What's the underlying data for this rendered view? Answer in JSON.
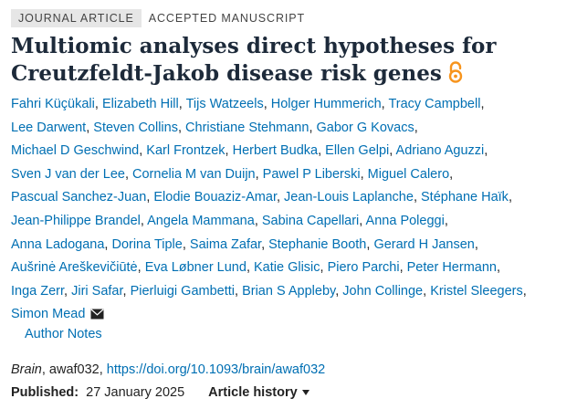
{
  "labels": {
    "type": "JOURNAL ARTICLE",
    "status": "ACCEPTED MANUSCRIPT"
  },
  "article": {
    "title_line1": "Multiomic analyses direct hypotheses for",
    "title_line2": "Creutzfeldt-Jakob disease risk genes",
    "open_access_icon": "open-lock-icon"
  },
  "authors": [
    "Fahri Küçükali",
    "Elizabeth Hill",
    "Tijs Watzeels",
    "Holger Hummerich",
    "Tracy Campbell",
    "Lee Darwent",
    "Steven Collins",
    "Christiane Stehmann",
    "Gabor G Kovacs",
    "Michael D Geschwind",
    "Karl Frontzek",
    "Herbert Budka",
    "Ellen Gelpi",
    "Adriano Aguzzi",
    "Sven J van der Lee",
    "Cornelia M van Duijn",
    "Pawel P Liberski",
    "Miguel Calero",
    "Pascual Sanchez-Juan",
    "Elodie Bouaziz-Amar",
    "Jean-Louis Laplanche",
    "Stéphane Haïk",
    "Jean-Philippe Brandel",
    "Angela Mammana",
    "Sabina Capellari",
    "Anna Poleggi",
    "Anna Ladogana",
    "Dorina Tiple",
    "Saima Zafar",
    "Stephanie Booth",
    "Gerard H Jansen",
    "Aušrinė Areškevičiūtė",
    "Eva Løbner Lund",
    "Katie Glisic",
    "Piero Parchi",
    "Peter Hermann",
    "Inga Zerr",
    "Jiri Safar",
    "Pierluigi Gambetti",
    "Brian S Appleby",
    "John Collinge",
    "Kristel Sleegers",
    "Simon Mead"
  ],
  "author_line_breaks": [
    5,
    9,
    14,
    18,
    22,
    26,
    31,
    36,
    42
  ],
  "corresponding_icon": "envelope-icon",
  "author_notes": "Author Notes",
  "citation": {
    "journal": "Brain",
    "id": ", awaf032, ",
    "doi": "https://doi.org/10.1093/brain/awaf032"
  },
  "published": {
    "label": "Published:",
    "date": "27 January 2025"
  },
  "history": {
    "label": "Article history"
  },
  "colors": {
    "link": "#006fb3",
    "oa_orange": "#f7941d",
    "title": "#1d2a3a"
  }
}
